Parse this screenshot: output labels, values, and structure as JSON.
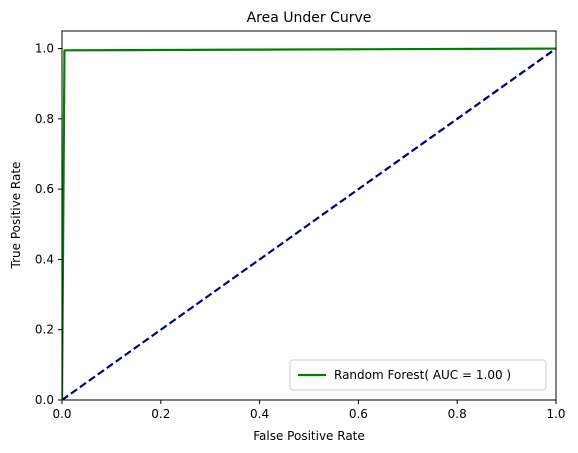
{
  "chart_data": {
    "type": "line",
    "title": "Area Under Curve",
    "xlabel": "False Positive Rate",
    "ylabel": "True Positive Rate",
    "xlim": [
      0.0,
      1.0
    ],
    "ylim": [
      0.0,
      1.05
    ],
    "xticks": [
      0.0,
      0.2,
      0.4,
      0.6,
      0.8,
      1.0
    ],
    "yticks": [
      0.0,
      0.2,
      0.4,
      0.6,
      0.8,
      1.0
    ],
    "xtick_labels": [
      "0.0",
      "0.2",
      "0.4",
      "0.6",
      "0.8",
      "1.0"
    ],
    "ytick_labels": [
      "0.0",
      "0.2",
      "0.4",
      "0.6",
      "0.8",
      "1.0"
    ],
    "grid": false,
    "legend_position": "lower-right",
    "series": [
      {
        "name": "Random Forest( AUC = 1.00 )",
        "color": "#008000",
        "style": "solid",
        "x": [
          0.0,
          0.0,
          0.005,
          0.006,
          1.0
        ],
        "y": [
          0.0,
          0.0,
          0.995,
          0.995,
          1.0
        ]
      },
      {
        "color": "#000080",
        "style": "dashed",
        "x": [
          0.0,
          1.0
        ],
        "y": [
          0.0,
          1.0
        ]
      }
    ]
  }
}
